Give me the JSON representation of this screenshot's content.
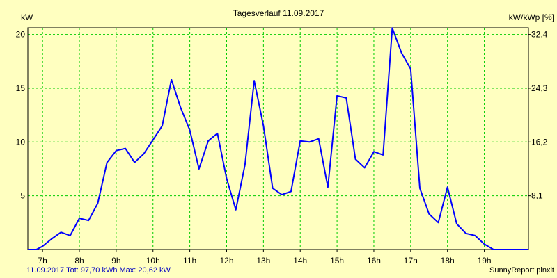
{
  "chart_data": {
    "type": "line",
    "title": "Tagesverlauf 11.09.2017",
    "ylabel": "kW",
    "ylabel_right": "kW/kWp [%]",
    "ylim": [
      0,
      20.62
    ],
    "y_ticks": [
      5,
      10,
      15,
      20
    ],
    "y_tick_labels": [
      "5",
      "10",
      "15",
      "20"
    ],
    "right_ticks": [
      {
        "at": 5.0,
        "label": "8,1"
      },
      {
        "at": 10.0,
        "label": "16,2"
      },
      {
        "at": 15.0,
        "label": "24,3"
      },
      {
        "at": 20.0,
        "label": "32,4"
      }
    ],
    "xlim": [
      6.6,
      20.2
    ],
    "x_ticks": [
      7,
      8,
      9,
      10,
      11,
      12,
      13,
      14,
      15,
      16,
      17,
      18,
      19
    ],
    "x_tick_labels": [
      "7h",
      "8h",
      "9h",
      "10h",
      "11h",
      "12h",
      "13h",
      "14h",
      "15h",
      "16h",
      "17h",
      "18h",
      "19h"
    ],
    "grid": true,
    "colors": {
      "line": "#0000ff",
      "grid": "#00cc00",
      "background": "#ffffc0",
      "footer_left": "#0000c0"
    },
    "series": [
      {
        "x": [
          6.583,
          6.833,
          7.0,
          7.25,
          7.5,
          7.75,
          8.0,
          8.25,
          8.5,
          8.75,
          9.0,
          9.25,
          9.5,
          9.75,
          10.0,
          10.25,
          10.5,
          10.75,
          11.0,
          11.25,
          11.5,
          11.75,
          12.0,
          12.25,
          12.5,
          12.75,
          13.0,
          13.25,
          13.5,
          13.75,
          14.0,
          14.25,
          14.5,
          14.75,
          15.0,
          15.25,
          15.5,
          15.75,
          16.0,
          16.25,
          16.5,
          16.75,
          17.0,
          17.25,
          17.5,
          17.75,
          18.0,
          18.25,
          18.5,
          18.75,
          19.0,
          19.25,
          19.5,
          19.75,
          20.0,
          20.25
        ],
        "y": [
          0.0,
          0.0,
          0.3,
          1.0,
          1.6,
          1.3,
          2.9,
          2.7,
          4.3,
          8.1,
          9.2,
          9.4,
          8.1,
          8.9,
          10.2,
          11.5,
          15.8,
          13.2,
          11.1,
          7.5,
          10.1,
          10.8,
          6.6,
          3.7,
          7.9,
          15.7,
          11.5,
          5.7,
          5.1,
          5.4,
          10.1,
          10.0,
          10.3,
          5.8,
          14.3,
          14.1,
          8.4,
          7.6,
          9.1,
          8.8,
          20.6,
          18.3,
          16.8,
          5.7,
          3.3,
          2.5,
          5.8,
          2.4,
          1.5,
          1.3,
          0.5,
          0.0,
          0.0,
          0.0,
          0.0,
          0.0
        ]
      }
    ]
  },
  "footer": {
    "left": "11.09.2017 Tot: 97,70 kWh Max: 20,62 kW",
    "right": "SunnyReport pinxit"
  }
}
